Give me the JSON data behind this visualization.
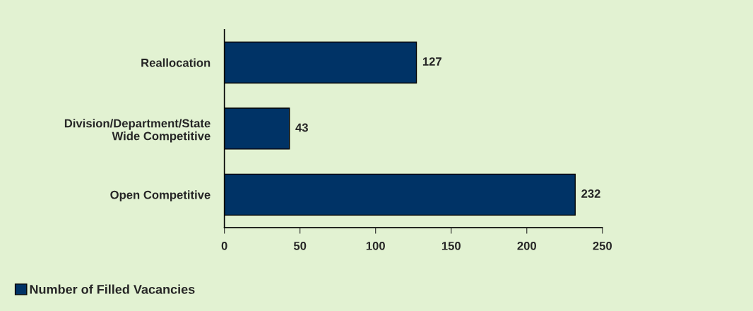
{
  "chart_data": {
    "type": "bar",
    "orientation": "horizontal",
    "categories": [
      "Reallocation",
      "Division/Department/State\nWide Competitive",
      "Open Competitive"
    ],
    "series": [
      {
        "name": "Number of Filled Vacancies",
        "color": "#003366",
        "values": [
          127,
          43,
          232
        ]
      }
    ],
    "xlim": [
      0,
      250
    ],
    "xticks": [
      0,
      50,
      100,
      150,
      200,
      250
    ],
    "data_labels": true,
    "grid": false,
    "legend": "bottom left"
  }
}
